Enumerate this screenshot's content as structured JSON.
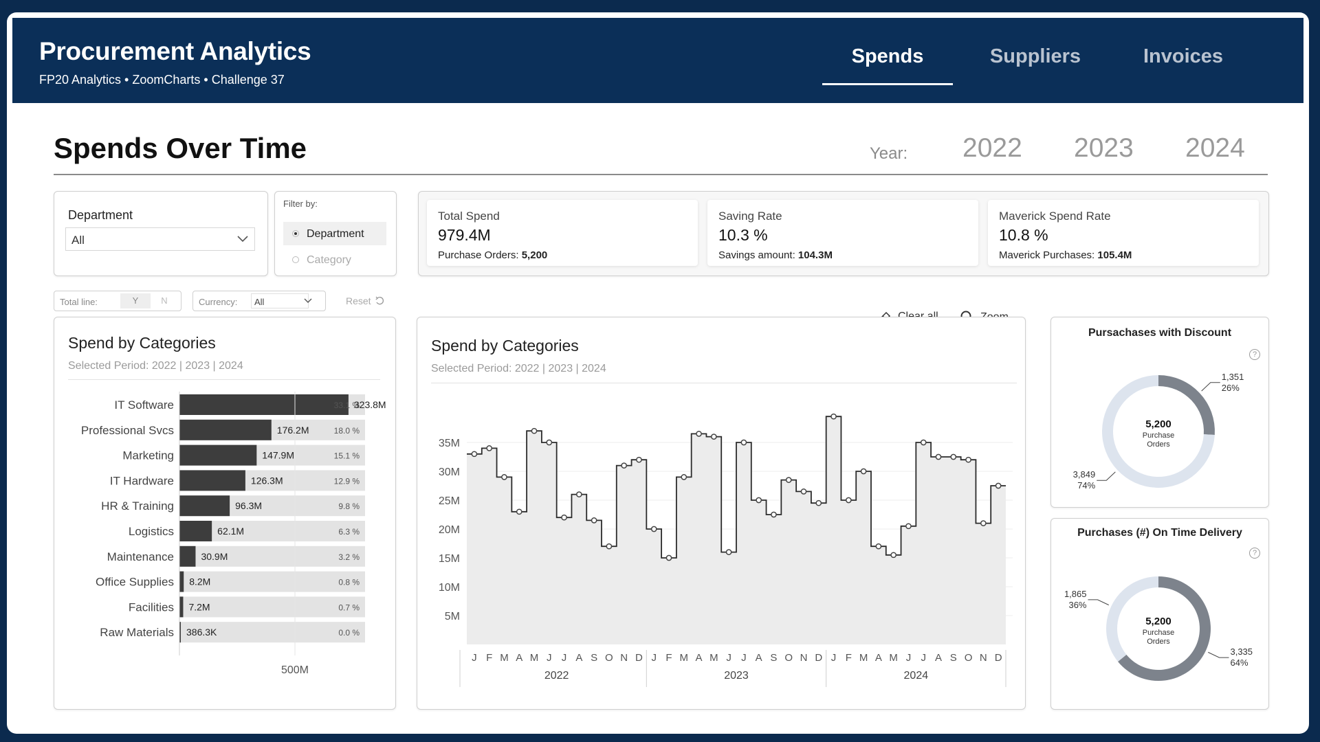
{
  "header": {
    "title": "Procurement Analytics",
    "subtitle": "FP20 Analytics  •  ZoomCharts  •  Challenge 37",
    "tabs": [
      {
        "label": "Spends",
        "active": true
      },
      {
        "label": "Suppliers",
        "active": false
      },
      {
        "label": "Invoices",
        "active": false
      }
    ]
  },
  "page": {
    "title": "Spends Over Time",
    "year_label": "Year:",
    "years": [
      "2022",
      "2023",
      "2024"
    ]
  },
  "department": {
    "label": "Department",
    "value": "All"
  },
  "filter": {
    "title": "Filter by:",
    "options": [
      {
        "label": "Department",
        "selected": true
      },
      {
        "label": "Category",
        "selected": false
      }
    ]
  },
  "kpis": [
    {
      "label": "Total Spend",
      "value": "979.4M",
      "sub_label": "Purchase Orders: ",
      "sub_value": "5,200"
    },
    {
      "label": "Saving Rate",
      "value": "10.3 %",
      "sub_label": "Savings amount: ",
      "sub_value": "104.3M"
    },
    {
      "label": "Maverick Spend Rate",
      "value": "10.8 %",
      "sub_label": "Maverick Purchases: ",
      "sub_value": "105.4M"
    }
  ],
  "controls": {
    "total_line_label": "Total line:",
    "total_line_yes": "Y",
    "total_line_no": "N",
    "currency_label": "Currency:",
    "currency_value": "All",
    "reset_label": "Reset",
    "clear_all_label": "Clear all",
    "zoom_label": "Zoom"
  },
  "bar_card": {
    "title": "Spend by Categories",
    "period": "Selected Period: 2022 | 2023 | 2024"
  },
  "line_card": {
    "title": "Spend by Categories",
    "period": "Selected Period: 2022 | 2023 | 2024"
  },
  "chart_data": [
    {
      "type": "bar",
      "orientation": "horizontal",
      "title": "Spend by Categories",
      "subtitle": "Selected Period: 2022 | 2023 | 2024",
      "categories": [
        "IT Software",
        "Professional Svcs",
        "Marketing",
        "IT Hardware",
        "HR & Training",
        "Logistics",
        "Maintenance",
        "Office Supplies",
        "Facilities",
        "Raw Materials"
      ],
      "values": [
        323.8,
        176.2,
        147.9,
        126.3,
        96.3,
        62.1,
        30.9,
        8.2,
        7.2,
        0.3863
      ],
      "value_labels": [
        "323.8M",
        "176.2M",
        "147.9M",
        "126.3M",
        "96.3M",
        "62.1M",
        "30.9M",
        "8.2M",
        "7.2M",
        "386.3K"
      ],
      "share_labels": [
        "33.1 %",
        "18.0 %",
        "15.1 %",
        "12.9 %",
        "9.8 %",
        "6.3 %",
        "3.2 %",
        "0.8 %",
        "0.7 %",
        "0.0 %"
      ],
      "xlim": [
        0,
        800
      ],
      "xticks": [
        {
          "value": 500,
          "label": "500M"
        }
      ],
      "unit": "M"
    },
    {
      "type": "line",
      "step": true,
      "title": "Spend by Categories",
      "subtitle": "Selected Period: 2022 | 2023 | 2024",
      "months": [
        "J",
        "F",
        "M",
        "A",
        "M",
        "J",
        "J",
        "A",
        "S",
        "O",
        "N",
        "D",
        "J",
        "F",
        "M",
        "A",
        "M",
        "J",
        "J",
        "A",
        "S",
        "O",
        "N",
        "D",
        "J",
        "F",
        "M",
        "A",
        "M",
        "J",
        "J",
        "A",
        "S",
        "O",
        "N",
        "D"
      ],
      "years": [
        "2022",
        "2023",
        "2024"
      ],
      "values": [
        33,
        34,
        29,
        23,
        37,
        35,
        22,
        26,
        21.5,
        17,
        31,
        32,
        20,
        15,
        29,
        36.5,
        36,
        16,
        35,
        25,
        22.5,
        28.5,
        26.5,
        24.5,
        39.5,
        25,
        30,
        17,
        15.5,
        20.5,
        35,
        32.5,
        32.5,
        32,
        21,
        27.5
      ],
      "ylim": [
        0,
        40
      ],
      "yticks": [
        {
          "value": 5,
          "label": "5M"
        },
        {
          "value": 10,
          "label": "10M"
        },
        {
          "value": 15,
          "label": "15M"
        },
        {
          "value": 20,
          "label": "20M"
        },
        {
          "value": 25,
          "label": "25M"
        },
        {
          "value": 30,
          "label": "30M"
        },
        {
          "value": 35,
          "label": "35M"
        }
      ],
      "unit": "M"
    },
    {
      "type": "pie",
      "donut": true,
      "title": "Pursachases with Discount",
      "center_value": "5,200",
      "center_label": "Purchase Orders",
      "slices": [
        {
          "value": 1351,
          "label": "1,351",
          "pct": "26%",
          "color": "#7d838c"
        },
        {
          "value": 3849,
          "label": "3,849",
          "pct": "74%",
          "color": "#dde4ee"
        }
      ]
    },
    {
      "type": "pie",
      "donut": true,
      "title": "Purchases (#) On Time Delivery",
      "center_value": "5,200",
      "center_label": "Purchase Orders",
      "slices": [
        {
          "value": 3335,
          "label": "3,335",
          "pct": "64%",
          "color": "#7d838c"
        },
        {
          "value": 1865,
          "label": "1,865",
          "pct": "36%",
          "color": "#dde4ee"
        }
      ]
    }
  ],
  "colors": {
    "header_bg": "#0b2f58",
    "bar": "#3d3d3d",
    "bar_track": "#e3e3e3",
    "line": "#2b2b2b",
    "area": "#ececec",
    "donut_dark": "#7d838c",
    "donut_light": "#dde4ee"
  },
  "icons": {
    "dropdown": "chevron-down-icon",
    "reset": "undo-icon",
    "clear": "eraser-icon",
    "zoom": "search-icon",
    "help": "help-icon"
  }
}
